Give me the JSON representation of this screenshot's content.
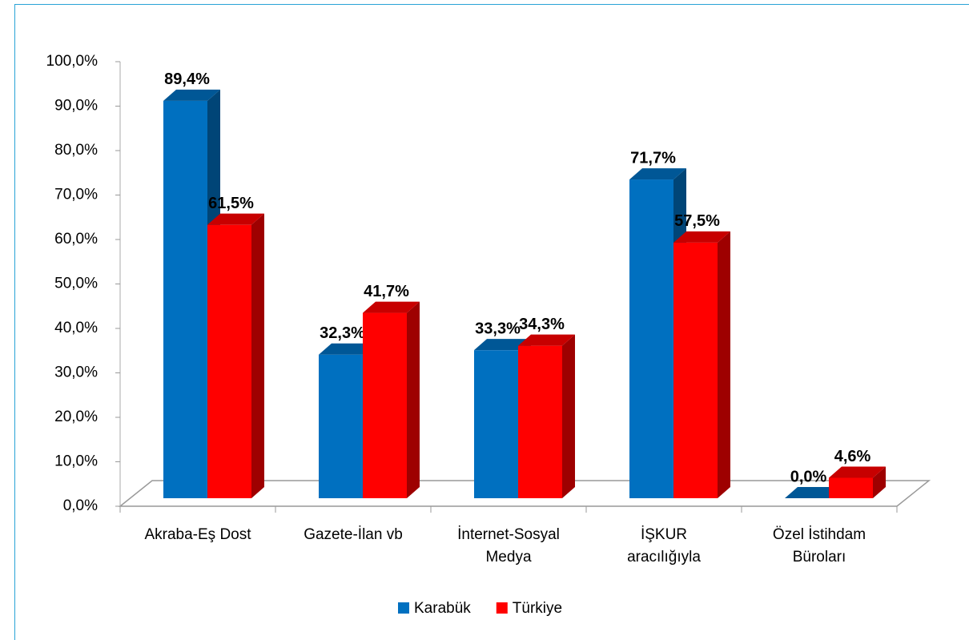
{
  "chart_data": {
    "type": "bar3d",
    "categories": [
      "Akraba-Eş Dost",
      "Gazete-İlan vb",
      "İnternet-Sosyal Medya",
      "İŞKUR aracılığıyla",
      "Özel İstihdam Büroları"
    ],
    "series": [
      {
        "name": "Karabük",
        "color": "#0070c0",
        "values": [
          89.4,
          32.3,
          33.3,
          71.7,
          0.0
        ],
        "value_labels": [
          "89,4%",
          "32,3%",
          "33,3%",
          "71,7%",
          "0,0%"
        ]
      },
      {
        "name": "Türkiye",
        "color": "#ff0000",
        "values": [
          61.5,
          41.7,
          34.3,
          57.5,
          4.6
        ],
        "value_labels": [
          "61,5%",
          "41,7%",
          "34,3%",
          "57,5%",
          "4,6%"
        ]
      }
    ],
    "ylim": [
      0,
      100
    ],
    "yticks": [
      {
        "value": 0,
        "label": "0,0%"
      },
      {
        "value": 10,
        "label": "10,0%"
      },
      {
        "value": 20,
        "label": "20,0%"
      },
      {
        "value": 30,
        "label": "30,0%"
      },
      {
        "value": 40,
        "label": "40,0%"
      },
      {
        "value": 50,
        "label": "50,0%"
      },
      {
        "value": 60,
        "label": "60,0%"
      },
      {
        "value": 70,
        "label": "70,0%"
      },
      {
        "value": 80,
        "label": "80,0%"
      },
      {
        "value": 90,
        "label": "90,0%"
      },
      {
        "value": 100,
        "label": "100,0%"
      }
    ],
    "legend": "bottom"
  }
}
